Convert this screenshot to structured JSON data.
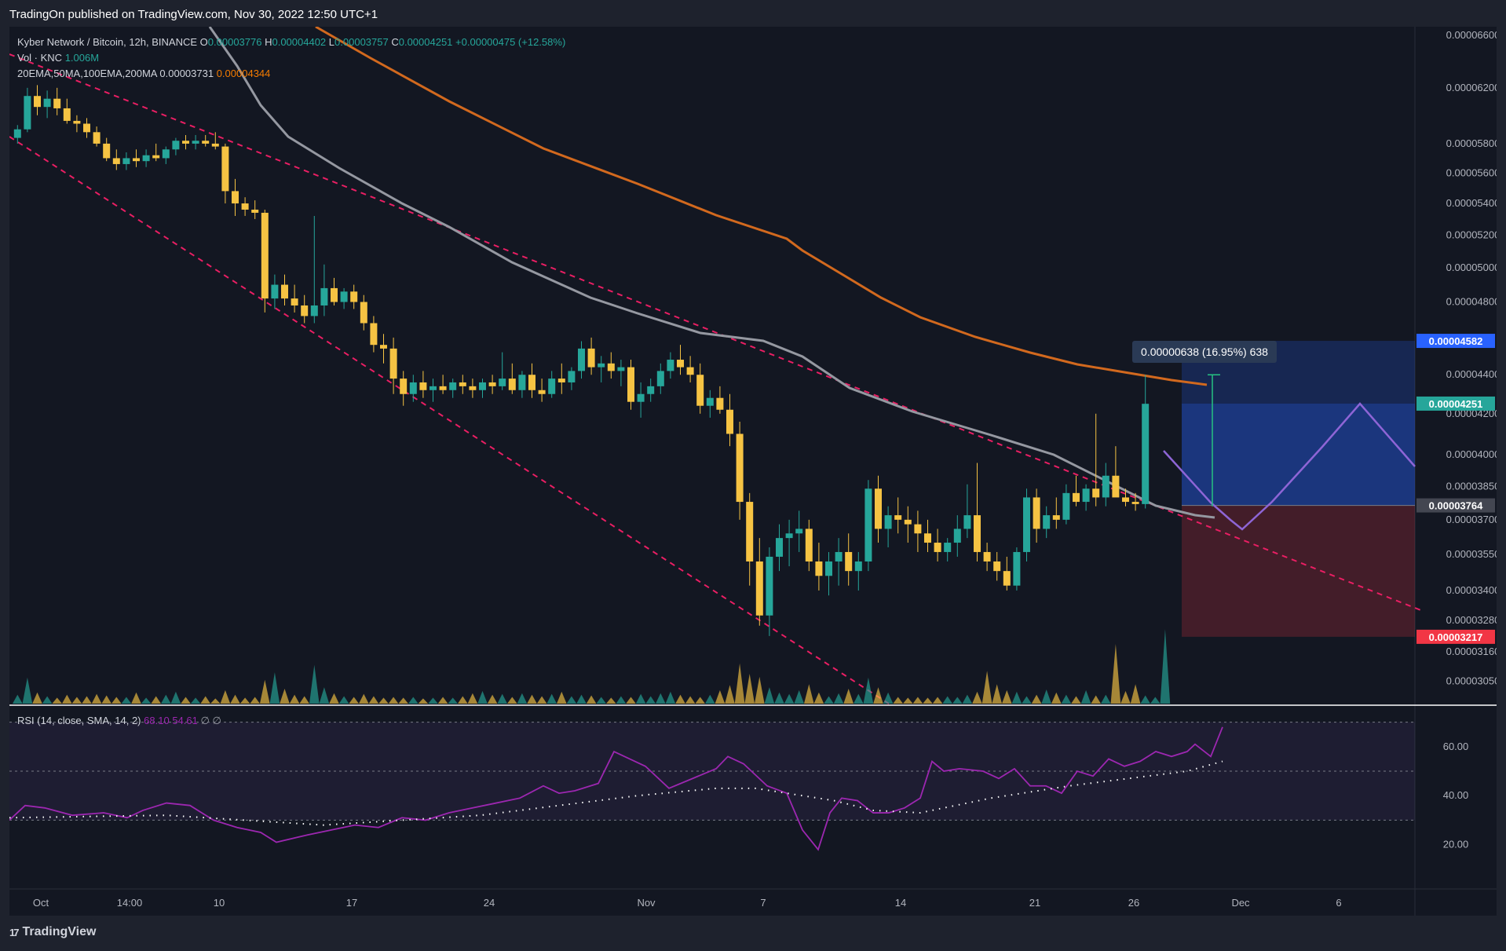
{
  "header": {
    "publisher_line": "TradingOn published on TradingView.com, Nov 30, 2022 12:50 UTC+1"
  },
  "legend": {
    "symbol": "Kyber Network / Bitcoin, 12h, BINANCE",
    "open_label": "O",
    "open": "0.00003776",
    "high_label": "H",
    "high": "0.00004402",
    "low_label": "L",
    "low": "0.00003757",
    "close_label": "C",
    "close": "0.00004251",
    "change": "+0.00000475 (+12.58%)",
    "vol_label": "Vol · KNC",
    "vol_value": "1.006M",
    "ma_label": "20EMA,50MA,100EMA,200MA",
    "ma_gray": "0.00003731",
    "ma_orange": "0.00004344"
  },
  "rsi_legend": {
    "label": "RSI (14, close, SMA, 14, 2)",
    "val1": "68.10",
    "val2": "54.61",
    "val3": "∅",
    "val4": "∅"
  },
  "price_badges": {
    "target": "0.00004582",
    "current": "0.00004251",
    "entry": "0.00003764",
    "stop": "0.00003217"
  },
  "measure_label": "0.00000638 (16.95%) 638",
  "footer": {
    "brand": "TradingView",
    "brand_mark": "17"
  },
  "colors": {
    "background": "#131722",
    "bull": "#26a69a",
    "bear": "#f6c343",
    "ma_gray": "#9598a1",
    "ma_orange": "#d2691e",
    "trend": "#e91e63",
    "rsi": "#9c27b0",
    "target_zone": "#2962ff",
    "stop_zone": "#f23645"
  },
  "chart_data": {
    "type": "candlestick",
    "title": "Kyber Network / Bitcoin, 12h, BINANCE",
    "y_axis_ticks": [
      "0.00006600",
      "0.00006200",
      "0.00005800",
      "0.00005600",
      "0.00005400",
      "0.00005200",
      "0.00005000",
      "0.00004800",
      "0.00004400",
      "0.00004200",
      "0.00004000",
      "0.00003850",
      "0.00003700",
      "0.00003550",
      "0.00003400",
      "0.00003280",
      "0.00003160",
      "0.00003050"
    ],
    "x_axis_ticks": [
      "Oct",
      "14:00",
      "10",
      "17",
      "24",
      "Nov",
      "7",
      "14",
      "21",
      "26",
      "Dec",
      "6"
    ],
    "rsi_axis_ticks": [
      "60.00",
      "40.00",
      "20.00"
    ],
    "ylim": [
      2.97e-05,
      6.67e-05
    ],
    "candles": [
      [
        5.84e-05,
        5.93e-05,
        5.8e-05,
        5.9e-05
      ],
      [
        5.9e-05,
        6.2e-05,
        5.88e-05,
        6.14e-05
      ],
      [
        6.14e-05,
        6.22e-05,
        6e-05,
        6.06e-05
      ],
      [
        6.06e-05,
        6.18e-05,
        5.98e-05,
        6.12e-05
      ],
      [
        6.12e-05,
        6.2e-05,
        6e-05,
        6.05e-05
      ],
      [
        6.05e-05,
        6.12e-05,
        5.94e-05,
        5.96e-05
      ],
      [
        5.96e-05,
        6e-05,
        5.88e-05,
        5.94e-05
      ],
      [
        5.94e-05,
        5.98e-05,
        5.84e-05,
        5.88e-05
      ],
      [
        5.88e-05,
        5.92e-05,
        5.78e-05,
        5.8e-05
      ],
      [
        5.8e-05,
        5.84e-05,
        5.68e-05,
        5.7e-05
      ],
      [
        5.7e-05,
        5.76e-05,
        5.62e-05,
        5.66e-05
      ],
      [
        5.66e-05,
        5.74e-05,
        5.62e-05,
        5.7e-05
      ],
      [
        5.7e-05,
        5.76e-05,
        5.64e-05,
        5.68e-05
      ],
      [
        5.68e-05,
        5.76e-05,
        5.64e-05,
        5.72e-05
      ],
      [
        5.72e-05,
        5.8e-05,
        5.68e-05,
        5.7e-05
      ],
      [
        5.7e-05,
        5.78e-05,
        5.66e-05,
        5.76e-05
      ],
      [
        5.76e-05,
        5.84e-05,
        5.72e-05,
        5.82e-05
      ],
      [
        5.82e-05,
        5.86e-05,
        5.76e-05,
        5.8e-05
      ],
      [
        5.8e-05,
        5.86e-05,
        5.76e-05,
        5.82e-05
      ],
      [
        5.82e-05,
        5.86e-05,
        5.78e-05,
        5.8e-05
      ],
      [
        5.8e-05,
        5.88e-05,
        5.76e-05,
        5.78e-05
      ],
      [
        5.78e-05,
        5.8e-05,
        5.4e-05,
        5.48e-05
      ],
      [
        5.48e-05,
        5.56e-05,
        5.32e-05,
        5.4e-05
      ],
      [
        5.4e-05,
        5.44e-05,
        5.32e-05,
        5.36e-05
      ],
      [
        5.36e-05,
        5.42e-05,
        5.3e-05,
        5.34e-05
      ],
      [
        5.34e-05,
        5.36e-05,
        4.74e-05,
        4.82e-05
      ],
      [
        4.82e-05,
        4.96e-05,
        4.76e-05,
        4.9e-05
      ],
      [
        4.9e-05,
        4.96e-05,
        4.78e-05,
        4.82e-05
      ],
      [
        4.82e-05,
        4.9e-05,
        4.74e-05,
        4.78e-05
      ],
      [
        4.78e-05,
        4.84e-05,
        4.68e-05,
        4.72e-05
      ],
      [
        4.72e-05,
        5.32e-05,
        4.68e-05,
        4.78e-05
      ],
      [
        4.78e-05,
        5.02e-05,
        4.72e-05,
        4.88e-05
      ],
      [
        4.88e-05,
        4.94e-05,
        4.78e-05,
        4.8e-05
      ],
      [
        4.8e-05,
        4.88e-05,
        4.76e-05,
        4.86e-05
      ],
      [
        4.86e-05,
        4.9e-05,
        4.76e-05,
        4.8e-05
      ],
      [
        4.8e-05,
        4.84e-05,
        4.64e-05,
        4.68e-05
      ],
      [
        4.68e-05,
        4.72e-05,
        4.52e-05,
        4.56e-05
      ],
      [
        4.56e-05,
        4.62e-05,
        4.46e-05,
        4.54e-05
      ],
      [
        4.54e-05,
        4.6e-05,
        4.3e-05,
        4.38e-05
      ],
      [
        4.38e-05,
        4.42e-05,
        4.24e-05,
        4.3e-05
      ],
      [
        4.3e-05,
        4.4e-05,
        4.26e-05,
        4.36e-05
      ],
      [
        4.36e-05,
        4.42e-05,
        4.28e-05,
        4.32e-05
      ],
      [
        4.32e-05,
        4.38e-05,
        4.26e-05,
        4.34e-05
      ],
      [
        4.34e-05,
        4.4e-05,
        4.3e-05,
        4.32e-05
      ],
      [
        4.32e-05,
        4.38e-05,
        4.28e-05,
        4.36e-05
      ],
      [
        4.36e-05,
        4.4e-05,
        4.3e-05,
        4.34e-05
      ],
      [
        4.34e-05,
        4.38e-05,
        4.28e-05,
        4.32e-05
      ],
      [
        4.32e-05,
        4.38e-05,
        4.28e-05,
        4.36e-05
      ],
      [
        4.36e-05,
        4.4e-05,
        4.3e-05,
        4.34e-05
      ],
      [
        4.34e-05,
        4.52e-05,
        4.32e-05,
        4.38e-05
      ],
      [
        4.38e-05,
        4.46e-05,
        4.3e-05,
        4.32e-05
      ],
      [
        4.32e-05,
        4.42e-05,
        4.28e-05,
        4.4e-05
      ],
      [
        4.4e-05,
        4.46e-05,
        4.28e-05,
        4.32e-05
      ],
      [
        4.32e-05,
        4.38e-05,
        4.26e-05,
        4.3e-05
      ],
      [
        4.3e-05,
        4.42e-05,
        4.28e-05,
        4.38e-05
      ],
      [
        4.38e-05,
        4.46e-05,
        4.3e-05,
        4.36e-05
      ],
      [
        4.36e-05,
        4.44e-05,
        4.32e-05,
        4.42e-05
      ],
      [
        4.42e-05,
        4.58e-05,
        4.38e-05,
        4.54e-05
      ],
      [
        4.54e-05,
        4.6e-05,
        4.4e-05,
        4.44e-05
      ],
      [
        4.44e-05,
        4.5e-05,
        4.36e-05,
        4.46e-05
      ],
      [
        4.46e-05,
        4.52e-05,
        4.38e-05,
        4.42e-05
      ],
      [
        4.42e-05,
        4.48e-05,
        4.34e-05,
        4.44e-05
      ],
      [
        4.44e-05,
        4.48e-05,
        4.22e-05,
        4.26e-05
      ],
      [
        4.26e-05,
        4.36e-05,
        4.18e-05,
        4.3e-05
      ],
      [
        4.3e-05,
        4.38e-05,
        4.26e-05,
        4.34e-05
      ],
      [
        4.34e-05,
        4.46e-05,
        4.3e-05,
        4.42e-05
      ],
      [
        4.42e-05,
        4.52e-05,
        4.38e-05,
        4.48e-05
      ],
      [
        4.48e-05,
        4.56e-05,
        4.4e-05,
        4.44e-05
      ],
      [
        4.44e-05,
        4.5e-05,
        4.36e-05,
        4.4e-05
      ],
      [
        4.4e-05,
        4.46e-05,
        4.2e-05,
        4.24e-05
      ],
      [
        4.24e-05,
        4.32e-05,
        4.18e-05,
        4.28e-05
      ],
      [
        4.28e-05,
        4.34e-05,
        4.2e-05,
        4.22e-05
      ],
      [
        4.22e-05,
        4.3e-05,
        4.04e-05,
        4.1e-05
      ],
      [
        4.1e-05,
        4.16e-05,
        3.7e-05,
        3.78e-05
      ],
      [
        3.78e-05,
        3.82e-05,
        3.42e-05,
        3.52e-05
      ],
      [
        3.52e-05,
        3.62e-05,
        3.26e-05,
        3.3e-05
      ],
      [
        3.3e-05,
        3.58e-05,
        3.22e-05,
        3.54e-05
      ],
      [
        3.54e-05,
        3.68e-05,
        3.48e-05,
        3.62e-05
      ],
      [
        3.62e-05,
        3.7e-05,
        3.5e-05,
        3.64e-05
      ],
      [
        3.64e-05,
        3.74e-05,
        3.56e-05,
        3.66e-05
      ],
      [
        3.66e-05,
        3.7e-05,
        3.48e-05,
        3.52e-05
      ],
      [
        3.52e-05,
        3.6e-05,
        3.4e-05,
        3.46e-05
      ],
      [
        3.46e-05,
        3.56e-05,
        3.38e-05,
        3.52e-05
      ],
      [
        3.52e-05,
        3.62e-05,
        3.42e-05,
        3.56e-05
      ],
      [
        3.56e-05,
        3.64e-05,
        3.42e-05,
        3.48e-05
      ],
      [
        3.48e-05,
        3.56e-05,
        3.4e-05,
        3.52e-05
      ],
      [
        3.52e-05,
        3.88e-05,
        3.48e-05,
        3.84e-05
      ],
      [
        3.84e-05,
        3.9e-05,
        3.6e-05,
        3.66e-05
      ],
      [
        3.66e-05,
        3.76e-05,
        3.58e-05,
        3.72e-05
      ],
      [
        3.72e-05,
        3.8e-05,
        3.64e-05,
        3.7e-05
      ],
      [
        3.7e-05,
        3.76e-05,
        3.6e-05,
        3.68e-05
      ],
      [
        3.68e-05,
        3.74e-05,
        3.56e-05,
        3.64e-05
      ],
      [
        3.64e-05,
        3.7e-05,
        3.56e-05,
        3.6e-05
      ],
      [
        3.6e-05,
        3.66e-05,
        3.52e-05,
        3.56e-05
      ],
      [
        3.56e-05,
        3.62e-05,
        3.52e-05,
        3.6e-05
      ],
      [
        3.6e-05,
        3.72e-05,
        3.54e-05,
        3.66e-05
      ],
      [
        3.66e-05,
        3.86e-05,
        3.62e-05,
        3.72e-05
      ],
      [
        3.72e-05,
        3.96e-05,
        3.52e-05,
        3.56e-05
      ],
      [
        3.56e-05,
        3.6e-05,
        3.48e-05,
        3.52e-05
      ],
      [
        3.52e-05,
        3.56e-05,
        3.44e-05,
        3.48e-05
      ],
      [
        3.48e-05,
        3.54e-05,
        3.4e-05,
        3.42e-05
      ],
      [
        3.42e-05,
        3.58e-05,
        3.4e-05,
        3.56e-05
      ],
      [
        3.56e-05,
        3.84e-05,
        3.52e-05,
        3.8e-05
      ],
      [
        3.8e-05,
        3.84e-05,
        3.6e-05,
        3.66e-05
      ],
      [
        3.66e-05,
        3.76e-05,
        3.62e-05,
        3.72e-05
      ],
      [
        3.72e-05,
        3.8e-05,
        3.66e-05,
        3.7e-05
      ],
      [
        3.7e-05,
        3.86e-05,
        3.68e-05,
        3.82e-05
      ],
      [
        3.82e-05,
        3.9e-05,
        3.76e-05,
        3.78e-05
      ],
      [
        3.78e-05,
        3.86e-05,
        3.74e-05,
        3.84e-05
      ],
      [
        3.84e-05,
        4.2e-05,
        3.76e-05,
        3.8e-05
      ],
      [
        3.8e-05,
        3.96e-05,
        3.76e-05,
        3.9e-05
      ],
      [
        3.9e-05,
        4.04e-05,
        3.82e-05,
        3.8e-05
      ],
      [
        3.8e-05,
        3.84e-05,
        3.76e-05,
        3.78e-05
      ],
      [
        3.78e-05,
        3.82e-05,
        3.74e-05,
        3.77e-05
      ],
      [
        3.77e-05,
        4.4e-05,
        3.75e-05,
        4.25e-05
      ]
    ],
    "volume": [
      1.2,
      3.5,
      1.5,
      1.0,
      0.8,
      1.2,
      0.9,
      1.0,
      1.3,
      1.1,
      0.9,
      0.9,
      1.5,
      0.8,
      1.0,
      1.2,
      1.6,
      0.9,
      0.8,
      1.0,
      0.7,
      1.8,
      1.2,
      0.8,
      0.9,
      3.2,
      4.2,
      2.0,
      1.2,
      1.0,
      5.2,
      2.2,
      1.4,
      1.0,
      0.9,
      1.3,
      1.0,
      0.8,
      0.9,
      0.8,
      0.9,
      0.7,
      0.8,
      0.9,
      0.8,
      1.0,
      1.4,
      1.7,
      1.2,
      1.3,
      0.9,
      1.4,
      1.2,
      1.0,
      1.3,
      1.6,
      1.0,
      1.2,
      1.1,
      0.9,
      0.8,
      1.0,
      0.9,
      1.3,
      1.0,
      1.4,
      1.6,
      1.2,
      1.0,
      0.9,
      1.2,
      1.8,
      2.5,
      5.4,
      4.0,
      3.6,
      2.2,
      1.5,
      1.3,
      1.8,
      2.6,
      1.5,
      1.0,
      1.4,
      2.0,
      1.3,
      3.5,
      2.2,
      1.5,
      0.9,
      0.8,
      0.9,
      0.8,
      0.9,
      1.0,
      0.9,
      1.2,
      1.6,
      4.4,
      2.6,
      1.8,
      1.6,
      1.0,
      1.2,
      1.9,
      1.5,
      1.2,
      1.0,
      1.8,
      1.1,
      1.2,
      8.0,
      1.7,
      2.6,
      1.1,
      0.9,
      10.0
    ]
  }
}
